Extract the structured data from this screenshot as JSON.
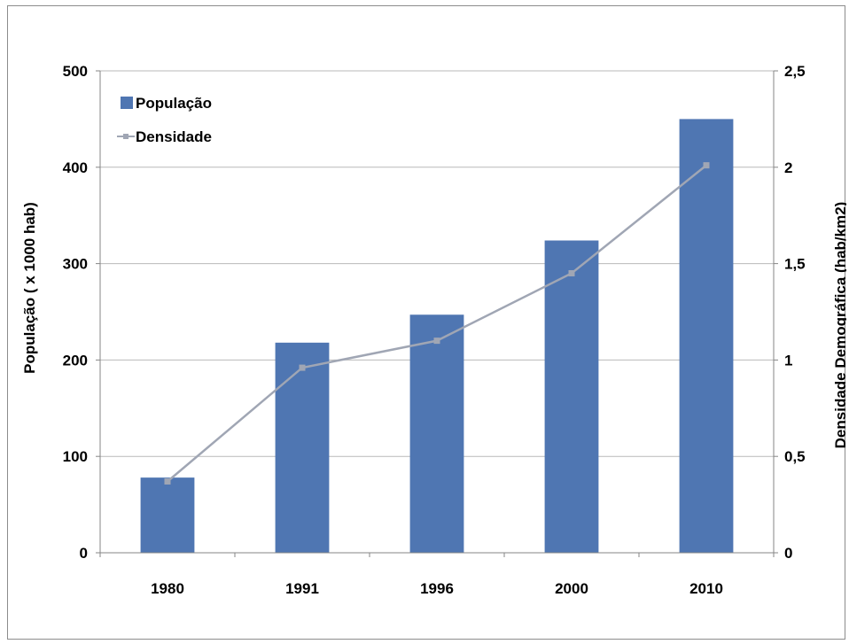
{
  "chart_data": {
    "type": "bar",
    "categories": [
      "1980",
      "1991",
      "1996",
      "2000",
      "2010"
    ],
    "series": [
      {
        "name": "População",
        "type": "bar",
        "axis": "left",
        "values": [
          78,
          218,
          247,
          324,
          450
        ],
        "color": "#4f76b2"
      },
      {
        "name": "Densidade",
        "type": "line",
        "axis": "right",
        "values": [
          0.37,
          0.96,
          1.1,
          1.45,
          2.01
        ],
        "color": "#a0a6b4"
      }
    ],
    "ylabel": "População ( x 1000 hab)",
    "y2label": "Densidade Demográfica (hab/km2)",
    "ylim": [
      0,
      500
    ],
    "y2lim": [
      0,
      2.5
    ],
    "yticks": [
      "0",
      "100",
      "200",
      "300",
      "400",
      "500"
    ],
    "y2ticks": [
      "0",
      "0,5",
      "1",
      "1,5",
      "2",
      "2,5"
    ],
    "grid": true,
    "legend": "top-left"
  }
}
